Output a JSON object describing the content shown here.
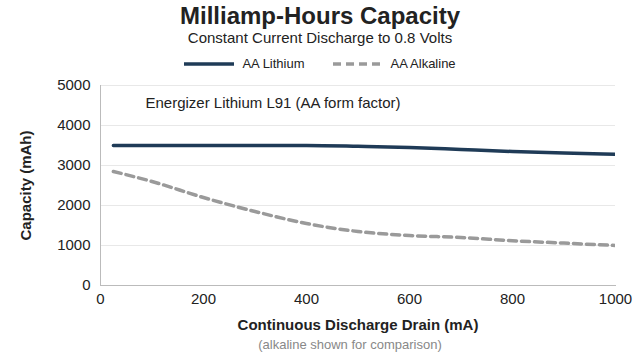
{
  "chart_data": {
    "type": "line",
    "title": "Milliamp-Hours Capacity",
    "subtitle": "Constant Current Discharge to 0.8 Volts",
    "x_label": "Continuous Discharge Drain (mA)",
    "y_label": "Capacity (mAh)",
    "caption": "(alkaline shown for comparison)",
    "annotations": [
      "Energizer Lithium L91 (AA form factor)"
    ],
    "x": [
      25,
      100,
      200,
      300,
      400,
      500,
      600,
      700,
      800,
      900,
      1000
    ],
    "series": [
      {
        "name": "AA Lithium",
        "color": "#1f3b57",
        "line_style": "solid",
        "values": [
          3500,
          3500,
          3500,
          3500,
          3500,
          3480,
          3450,
          3400,
          3350,
          3310,
          3280
        ]
      },
      {
        "name": "AA Alkaline",
        "color": "#9a9a9a",
        "line_style": "dashed",
        "values": [
          2850,
          2600,
          2200,
          1850,
          1550,
          1350,
          1250,
          1200,
          1120,
          1060,
          1000
        ]
      }
    ],
    "xlim": [
      0,
      1000
    ],
    "xticks": [
      0,
      200,
      400,
      600,
      800,
      1000
    ],
    "ylim": [
      0,
      5000
    ],
    "yticks": [
      0,
      1000,
      2000,
      3000,
      4000,
      5000
    ],
    "grid": true,
    "legend": "top"
  }
}
